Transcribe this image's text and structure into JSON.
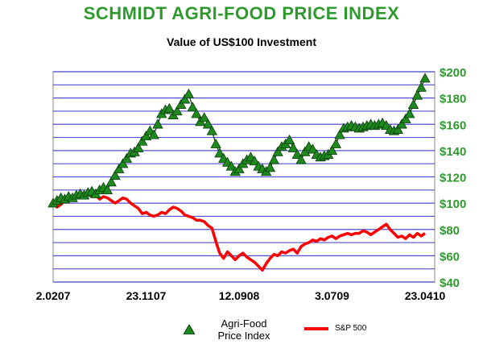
{
  "colors": {
    "title": "#2e9a2e",
    "agri_marker": "#1e8a1e",
    "agri_marker_stroke": "#0a3a0a",
    "sp500": "#ff0000",
    "grid": "#3333cc",
    "plot_bg": "#ffffff",
    "axis_right_labels": "#2e9a2e"
  },
  "chart_data": {
    "type": "line",
    "title": "SCHMIDT AGRI-FOOD PRICE INDEX",
    "subtitle": "Value of US$100 Investment",
    "xlabel": "",
    "ylabel": "",
    "ylim": [
      40,
      200
    ],
    "yticks": [
      40,
      60,
      80,
      100,
      120,
      140,
      160,
      180,
      200
    ],
    "ytick_labels": [
      "$40",
      "$60",
      "$80",
      "$100",
      "$120",
      "$140",
      "$160",
      "$180",
      "$200"
    ],
    "y_axis_side": "right",
    "x_tick_labels": [
      "2.0207",
      "23.1107",
      "12.0908",
      "3.0709",
      "23.0410"
    ],
    "x_tick_index": [
      0,
      24,
      48,
      72,
      96
    ],
    "grid": "horizontal",
    "legend_position": "bottom",
    "series": [
      {
        "name": "Agri-Food\nPrice Index",
        "marker": "triangle",
        "values": [
          100,
          102,
          104,
          103,
          105,
          104,
          106,
          107,
          106,
          108,
          109,
          107,
          110,
          112,
          110,
          116,
          121,
          126,
          130,
          134,
          138,
          139,
          142,
          147,
          151,
          155,
          152,
          160,
          168,
          171,
          172,
          167,
          170,
          175,
          179,
          183,
          173,
          168,
          162,
          165,
          160,
          155,
          145,
          138,
          134,
          131,
          128,
          124,
          126,
          130,
          133,
          135,
          132,
          128,
          126,
          124,
          127,
          133,
          139,
          143,
          145,
          148,
          142,
          137,
          133,
          139,
          143,
          141,
          137,
          135,
          136,
          137,
          140,
          145,
          152,
          157,
          158,
          159,
          158,
          157,
          158,
          159,
          160,
          159,
          160,
          161,
          159,
          156,
          155,
          156,
          160,
          164,
          168,
          175,
          182,
          188,
          195
        ]
      },
      {
        "name": "S&P 500",
        "values": [
          100,
          97,
          99,
          102,
          104,
          105,
          106,
          106,
          108,
          107,
          105,
          106,
          103,
          105,
          104,
          102,
          100,
          102,
          104,
          103,
          100,
          98,
          96,
          92,
          93,
          91,
          90,
          91,
          93,
          92,
          95,
          97,
          96,
          94,
          91,
          90,
          89,
          87,
          87,
          86,
          83,
          81,
          71,
          62,
          58,
          63,
          60,
          57,
          60,
          62,
          59,
          57,
          55,
          52,
          49,
          54,
          58,
          61,
          60,
          63,
          62,
          64,
          65,
          62,
          67,
          69,
          70,
          72,
          71,
          73,
          72,
          74,
          75,
          73,
          75,
          76,
          77,
          76,
          77,
          77,
          79,
          78,
          76,
          78,
          80,
          82,
          84,
          80,
          77,
          74,
          75,
          73,
          76,
          74,
          77,
          75,
          77
        ]
      }
    ]
  }
}
